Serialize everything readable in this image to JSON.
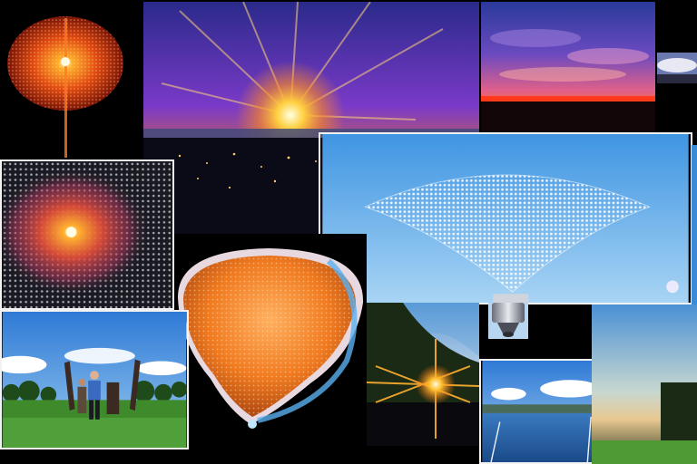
{
  "collage": {
    "tiles": [
      {
        "subject": "orange-dotted-orb-on-black"
      },
      {
        "subject": "purple-sunburst-over-city-skyline"
      },
      {
        "subject": "pink-purple-sunset-clouds"
      },
      {
        "subject": "dotted-glow-orb-on-dark-grid"
      },
      {
        "subject": "dot-cone-from-projector-on-blue-sky"
      },
      {
        "subject": "orange-lens-dome-with-dots"
      },
      {
        "subject": "people-with-sculptures-on-meadow"
      },
      {
        "subject": "sunset-behind-tree-hill"
      },
      {
        "subject": "harbor-with-boats-and-clouds"
      },
      {
        "subject": "sky-over-green-field"
      }
    ],
    "colors": {
      "background": "#000000",
      "sky_blue": "#5aa8e6",
      "sun_orange": "#ff8a1e",
      "purple": "#5b2aa8",
      "grass": "#3f8a2a",
      "frame": "#f2f2f2"
    }
  }
}
